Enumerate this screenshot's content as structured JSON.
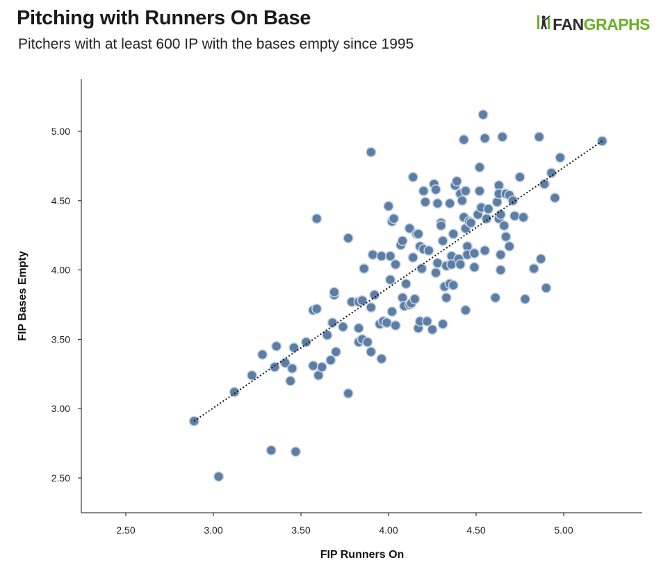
{
  "title": "Pitching with Runners On Base",
  "subtitle": "Pitchers with at least 600 IP with the bases empty since 1995",
  "logo": {
    "icon": "batter-icon",
    "part1": "FAN",
    "part2": "GRAPHS",
    "color_dark": "#2c2c2c",
    "color_green": "#6ab023"
  },
  "chart_data": {
    "type": "scatter",
    "title": "Pitching with Runners On Base",
    "subtitle": "Pitchers with at least 600 IP with the bases empty since 1995",
    "xlabel": "FIP Runners On",
    "ylabel": "FIP Bases Empty",
    "xlim": [
      2.25,
      5.45
    ],
    "ylim": [
      2.25,
      5.25
    ],
    "xticks": [
      2.5,
      3.0,
      3.5,
      4.0,
      4.5,
      5.0
    ],
    "yticks": [
      2.5,
      3.0,
      3.5,
      4.0,
      4.5,
      5.0
    ],
    "xtick_labels": [
      "2.50",
      "3.00",
      "3.50",
      "4.00",
      "4.50",
      "5.00"
    ],
    "ytick_labels": [
      "2.50",
      "3.00",
      "3.50",
      "4.00",
      "4.50",
      "5.00"
    ],
    "grid": false,
    "point_color": "#5a7ea6",
    "point_stroke": "#c9d3df",
    "trendline": {
      "style": "dotted",
      "color": "#111111",
      "from": [
        2.89,
        2.91
      ],
      "to": [
        5.22,
        4.93
      ]
    },
    "points": [
      [
        2.89,
        2.91
      ],
      [
        3.03,
        2.51
      ],
      [
        3.12,
        3.12
      ],
      [
        3.22,
        3.24
      ],
      [
        3.28,
        3.39
      ],
      [
        3.33,
        2.7
      ],
      [
        3.35,
        3.3
      ],
      [
        3.36,
        3.45
      ],
      [
        3.41,
        3.33
      ],
      [
        3.44,
        3.2
      ],
      [
        3.45,
        3.29
      ],
      [
        3.46,
        3.44
      ],
      [
        3.47,
        2.69
      ],
      [
        3.53,
        3.48
      ],
      [
        3.57,
        3.31
      ],
      [
        3.57,
        3.71
      ],
      [
        3.59,
        3.72
      ],
      [
        3.59,
        4.37
      ],
      [
        3.6,
        3.24
      ],
      [
        3.62,
        3.3
      ],
      [
        3.65,
        3.53
      ],
      [
        3.67,
        3.35
      ],
      [
        3.68,
        3.62
      ],
      [
        3.69,
        3.82
      ],
      [
        3.69,
        3.84
      ],
      [
        3.7,
        3.41
      ],
      [
        3.74,
        3.59
      ],
      [
        3.77,
        3.11
      ],
      [
        3.77,
        4.23
      ],
      [
        3.79,
        3.77
      ],
      [
        3.83,
        3.77
      ],
      [
        3.83,
        3.58
      ],
      [
        3.83,
        3.48
      ],
      [
        3.85,
        3.5
      ],
      [
        3.85,
        3.78
      ],
      [
        3.86,
        4.01
      ],
      [
        3.88,
        3.48
      ],
      [
        3.9,
        4.85
      ],
      [
        3.9,
        3.41
      ],
      [
        3.9,
        3.73
      ],
      [
        3.91,
        4.11
      ],
      [
        3.92,
        3.82
      ],
      [
        3.95,
        3.61
      ],
      [
        3.96,
        4.1
      ],
      [
        3.96,
        3.36
      ],
      [
        3.97,
        3.63
      ],
      [
        3.99,
        3.62
      ],
      [
        4.0,
        4.46
      ],
      [
        4.01,
        3.93
      ],
      [
        4.01,
        4.1
      ],
      [
        4.02,
        3.7
      ],
      [
        4.02,
        4.35
      ],
      [
        4.03,
        4.37
      ],
      [
        4.04,
        3.6
      ],
      [
        4.04,
        4.04
      ],
      [
        4.07,
        4.18
      ],
      [
        4.08,
        4.21
      ],
      [
        4.08,
        3.8
      ],
      [
        4.09,
        3.74
      ],
      [
        4.1,
        3.9
      ],
      [
        4.12,
        4.3
      ],
      [
        4.12,
        3.75
      ],
      [
        4.13,
        3.76
      ],
      [
        4.14,
        4.67
      ],
      [
        4.14,
        4.09
      ],
      [
        4.15,
        3.79
      ],
      [
        4.16,
        4.26
      ],
      [
        4.17,
        4.26
      ],
      [
        4.17,
        3.58
      ],
      [
        4.18,
        4.17
      ],
      [
        4.18,
        3.63
      ],
      [
        4.19,
        4.01
      ],
      [
        4.2,
        4.57
      ],
      [
        4.2,
        4.15
      ],
      [
        4.21,
        4.49
      ],
      [
        4.22,
        3.63
      ],
      [
        4.23,
        4.14
      ],
      [
        4.25,
        3.57
      ],
      [
        4.26,
        4.62
      ],
      [
        4.27,
        4.58
      ],
      [
        4.27,
        3.98
      ],
      [
        4.28,
        4.05
      ],
      [
        4.28,
        4.48
      ],
      [
        4.3,
        4.34
      ],
      [
        4.3,
        4.32
      ],
      [
        4.31,
        4.21
      ],
      [
        4.31,
        3.61
      ],
      [
        4.32,
        3.88
      ],
      [
        4.33,
        3.8
      ],
      [
        4.33,
        4.03
      ],
      [
        4.35,
        4.48
      ],
      [
        4.35,
        3.9
      ],
      [
        4.36,
        4.1
      ],
      [
        4.36,
        4.04
      ],
      [
        4.37,
        4.26
      ],
      [
        4.37,
        3.89
      ],
      [
        4.38,
        4.61
      ],
      [
        4.39,
        4.64
      ],
      [
        4.4,
        4.08
      ],
      [
        4.41,
        4.55
      ],
      [
        4.41,
        4.04
      ],
      [
        4.42,
        4.5
      ],
      [
        4.43,
        4.38
      ],
      [
        4.43,
        4.94
      ],
      [
        4.44,
        4.57
      ],
      [
        4.44,
        4.3
      ],
      [
        4.44,
        3.71
      ],
      [
        4.45,
        4.17
      ],
      [
        4.45,
        4.11
      ],
      [
        4.46,
        4.35
      ],
      [
        4.47,
        4.34
      ],
      [
        4.49,
        4.12
      ],
      [
        4.49,
        4.02
      ],
      [
        4.51,
        4.4
      ],
      [
        4.52,
        4.74
      ],
      [
        4.52,
        4.57
      ],
      [
        4.53,
        4.45
      ],
      [
        4.54,
        5.12
      ],
      [
        4.55,
        4.95
      ],
      [
        4.55,
        4.14
      ],
      [
        4.56,
        4.37
      ],
      [
        4.57,
        4.44
      ],
      [
        4.61,
        3.8
      ],
      [
        4.62,
        4.49
      ],
      [
        4.63,
        4.61
      ],
      [
        4.63,
        4.55
      ],
      [
        4.63,
        4.37
      ],
      [
        4.64,
        4.11
      ],
      [
        4.64,
        4.0
      ],
      [
        4.64,
        4.4
      ],
      [
        4.65,
        4.96
      ],
      [
        4.66,
        4.32
      ],
      [
        4.67,
        4.55
      ],
      [
        4.67,
        4.24
      ],
      [
        4.69,
        4.54
      ],
      [
        4.69,
        4.17
      ],
      [
        4.71,
        4.5
      ],
      [
        4.72,
        4.39
      ],
      [
        4.75,
        4.67
      ],
      [
        4.77,
        4.38
      ],
      [
        4.78,
        3.79
      ],
      [
        4.83,
        4.01
      ],
      [
        4.86,
        4.96
      ],
      [
        4.87,
        4.08
      ],
      [
        4.89,
        4.62
      ],
      [
        4.9,
        3.87
      ],
      [
        4.93,
        4.7
      ],
      [
        4.95,
        4.52
      ],
      [
        4.98,
        4.81
      ],
      [
        5.22,
        4.93
      ]
    ]
  }
}
